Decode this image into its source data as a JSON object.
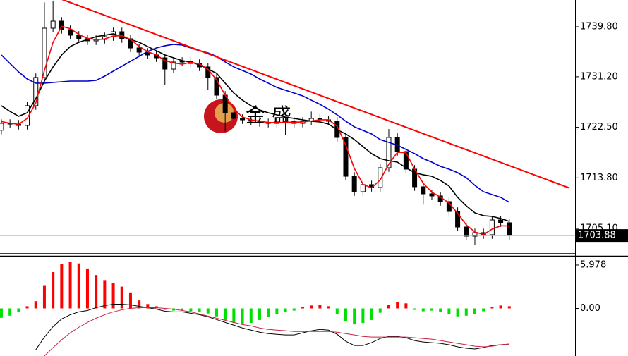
{
  "chart_data": [
    {
      "type": "candlestick",
      "watermark": "金 盛",
      "x": [
        0,
        1,
        2,
        3,
        4,
        5,
        6,
        7,
        8,
        9,
        10,
        11,
        12,
        13,
        14,
        15,
        16,
        17,
        18,
        19,
        20,
        21,
        22,
        23,
        24,
        25,
        26,
        27,
        28,
        29,
        30,
        31,
        32,
        33,
        34,
        35,
        36,
        37,
        38,
        39,
        40,
        41,
        42,
        43,
        44,
        45,
        46,
        47,
        48,
        49,
        50,
        51,
        52,
        53,
        54,
        55,
        56,
        57,
        58,
        59
      ],
      "open": [
        1722.0,
        1723.18,
        1723.06,
        1722.82,
        1726.22,
        1731.07,
        1739.56,
        1740.77,
        1739.32,
        1738.35,
        1737.74,
        1737.38,
        1737.62,
        1738.1,
        1738.95,
        1737.74,
        1736.16,
        1735.43,
        1734.95,
        1734.46,
        1732.52,
        1733.74,
        1733.86,
        1733.49,
        1732.89,
        1731.07,
        1728.03,
        1725.0,
        1724.03,
        1723.79,
        1723.55,
        1723.3,
        1723.18,
        1723.43,
        1723.55,
        1723.18,
        1723.55,
        1724.03,
        1723.79,
        1723.55,
        1720.76,
        1714.08,
        1711.42,
        1712.63,
        1712.14,
        1715.54,
        1720.76,
        1718.33,
        1715.3,
        1712.27,
        1711.05,
        1710.69,
        1709.72,
        1708.02,
        1705.35,
        1703.77,
        1704.38,
        1704.02,
        1706.56,
        1706.08
      ],
      "high": [
        1723.88,
        1723.88,
        1723.76,
        1726.92,
        1731.77,
        1744.0,
        1744.3,
        1741.47,
        1740.02,
        1739.05,
        1738.44,
        1738.32,
        1738.8,
        1739.65,
        1739.65,
        1738.44,
        1736.86,
        1736.13,
        1735.65,
        1735.16,
        1734.44,
        1734.56,
        1734.56,
        1734.19,
        1733.59,
        1731.77,
        1728.73,
        1725.7,
        1724.73,
        1724.49,
        1724.25,
        1724.0,
        1724.13,
        1724.25,
        1724.25,
        1724.25,
        1725.2,
        1724.73,
        1724.49,
        1724.25,
        1721.46,
        1714.78,
        1713.33,
        1713.33,
        1716.24,
        1722.2,
        1721.46,
        1719.03,
        1716.0,
        1712.97,
        1711.75,
        1711.39,
        1710.42,
        1708.72,
        1706.05,
        1705.08,
        1705.08,
        1707.26,
        1707.26,
        1706.78
      ],
      "low": [
        1721.3,
        1722.36,
        1722.12,
        1722.12,
        1725.52,
        1730.37,
        1738.86,
        1738.62,
        1737.65,
        1737.04,
        1736.68,
        1736.68,
        1736.92,
        1737.4,
        1737.04,
        1735.46,
        1734.73,
        1734.25,
        1733.76,
        1729.8,
        1731.82,
        1733.04,
        1732.79,
        1732.19,
        1729.0,
        1727.33,
        1721.8,
        1723.33,
        1723.09,
        1722.85,
        1722.6,
        1722.48,
        1722.48,
        1721.2,
        1722.48,
        1722.48,
        1722.85,
        1723.09,
        1722.85,
        1720.06,
        1713.38,
        1710.72,
        1710.72,
        1711.44,
        1711.44,
        1714.84,
        1717.63,
        1714.6,
        1711.57,
        1709.2,
        1709.99,
        1709.02,
        1707.32,
        1704.65,
        1703.07,
        1702.2,
        1703.32,
        1703.32,
        1705.38,
        1703.18
      ],
      "close": [
        1723.18,
        1723.06,
        1722.82,
        1726.22,
        1731.07,
        1739.56,
        1740.77,
        1739.32,
        1738.35,
        1737.74,
        1737.38,
        1737.62,
        1738.1,
        1738.95,
        1737.74,
        1736.16,
        1735.43,
        1734.95,
        1734.46,
        1732.52,
        1733.74,
        1733.86,
        1733.49,
        1732.89,
        1731.07,
        1728.03,
        1725.0,
        1724.03,
        1723.79,
        1723.55,
        1723.3,
        1723.18,
        1723.43,
        1723.55,
        1723.18,
        1723.55,
        1724.03,
        1723.79,
        1723.55,
        1720.76,
        1714.08,
        1711.42,
        1712.63,
        1712.14,
        1715.54,
        1720.76,
        1718.33,
        1715.3,
        1712.27,
        1711.05,
        1710.69,
        1709.72,
        1708.02,
        1705.35,
        1703.77,
        1704.38,
        1704.02,
        1706.56,
        1706.08,
        1703.88
      ],
      "series": [
        {
          "color": "#0000cc",
          "values": [
            1734.95,
            1733.49,
            1732.04,
            1730.82,
            1730.1,
            1730.1,
            1730.22,
            1730.34,
            1730.46,
            1730.46,
            1730.46,
            1730.58,
            1731.31,
            1732.16,
            1733.01,
            1733.86,
            1734.71,
            1735.56,
            1736.16,
            1736.53,
            1736.77,
            1736.65,
            1736.16,
            1735.68,
            1735.31,
            1734.71,
            1733.74,
            1732.89,
            1732.28,
            1731.67,
            1730.82,
            1730.1,
            1729.37,
            1728.88,
            1728.4,
            1727.91,
            1727.18,
            1726.46,
            1725.61,
            1724.64,
            1723.55,
            1722.58,
            1721.97,
            1721.36,
            1720.39,
            1719.91,
            1719.42,
            1718.7,
            1717.97,
            1717.12,
            1716.51,
            1715.78,
            1715.3,
            1714.69,
            1713.84,
            1712.51,
            1711.42,
            1710.93,
            1710.45,
            1709.6
          ]
        },
        {
          "color": "#000000",
          "values": [
            1726.22,
            1725.24,
            1724.4,
            1725.0,
            1727.43,
            1730.46,
            1732.89,
            1734.95,
            1736.4,
            1737.13,
            1737.62,
            1738.1,
            1738.35,
            1738.59,
            1738.1,
            1737.62,
            1737.13,
            1736.4,
            1735.68,
            1734.95,
            1734.46,
            1733.98,
            1733.74,
            1733.25,
            1732.52,
            1731.79,
            1730.1,
            1728.4,
            1727.18,
            1726.22,
            1725.49,
            1725.0,
            1724.64,
            1724.27,
            1724.03,
            1723.79,
            1723.55,
            1723.43,
            1723.06,
            1722.09,
            1721.36,
            1720.39,
            1719.18,
            1717.97,
            1717.12,
            1716.75,
            1716.51,
            1715.54,
            1714.69,
            1714.33,
            1714.08,
            1713.36,
            1712.39,
            1710.45,
            1708.99,
            1707.78,
            1707.3,
            1707.17,
            1706.81,
            1706.32
          ]
        },
        {
          "color": "#ff0000",
          "values": [
            1723.5,
            1723.2,
            1723.02,
            1724.03,
            1726.7,
            1732.28,
            1737.13,
            1739.88,
            1739.48,
            1738.47,
            1737.82,
            1737.58,
            1737.7,
            1738.22,
            1738.26,
            1737.62,
            1736.44,
            1735.51,
            1734.95,
            1733.98,
            1733.57,
            1733.37,
            1733.7,
            1733.41,
            1732.48,
            1730.66,
            1728.03,
            1725.69,
            1724.27,
            1723.79,
            1723.55,
            1723.34,
            1723.3,
            1723.39,
            1723.39,
            1723.43,
            1723.59,
            1723.79,
            1723.79,
            1722.7,
            1719.46,
            1715.42,
            1712.71,
            1712.06,
            1713.44,
            1716.15,
            1718.21,
            1718.13,
            1715.3,
            1712.87,
            1711.34,
            1710.49,
            1709.48,
            1707.7,
            1705.71,
            1704.5,
            1704.06,
            1704.99,
            1705.55,
            1705.51
          ]
        }
      ],
      "trendline": {
        "x": [
          7,
          66
        ],
        "values": [
          1744.53,
          1712.05
        ],
        "color": "#ff0000"
      },
      "last_price": 1703.88,
      "xlim": [
        -0.16,
        66.64
      ],
      "ylim": [
        1700.74,
        1744.41
      ],
      "yticks": [
        {
          "value": 1739.8,
          "label": "1739.80"
        },
        {
          "value": 1731.2,
          "label": "1731.20"
        },
        {
          "value": 1722.5,
          "label": "1722.50"
        },
        {
          "value": 1713.8,
          "label": "1713.80"
        },
        {
          "value": 1705.1,
          "label": "1705.10"
        }
      ]
    },
    {
      "type": "macd",
      "values": [
        -1.3,
        -1.0,
        -0.5,
        0.3,
        1.0,
        3.2,
        5.0,
        6.1,
        6.4,
        6.2,
        5.5,
        4.6,
        3.9,
        3.5,
        3.0,
        2.2,
        1.1,
        0.6,
        0.3,
        -0.2,
        -0.3,
        -0.3,
        -0.4,
        -0.5,
        -0.7,
        -1.1,
        -1.6,
        -2.0,
        -2.2,
        -2.0,
        -1.6,
        -1.2,
        -0.8,
        -0.5,
        -0.3,
        0.2,
        0.4,
        0.5,
        0.3,
        -0.8,
        -1.8,
        -2.2,
        -2.0,
        -1.6,
        -0.6,
        0.5,
        0.9,
        0.7,
        -0.2,
        -0.4,
        -0.3,
        -0.5,
        -0.8,
        -1.1,
        -1.0,
        -0.8,
        -0.4,
        0.2,
        0.4,
        0.3
      ],
      "colors": {
        "positive": "#ff0000",
        "negative": "#00e000"
      },
      "series": [
        {
          "color": "#000000",
          "values": [
            null,
            null,
            null,
            null,
            -5.69,
            -3.95,
            -2.51,
            -1.45,
            -0.87,
            -0.48,
            -0.29,
            0.1,
            0.39,
            0.58,
            0.58,
            0.48,
            0.29,
            0.1,
            -0.1,
            -0.39,
            -0.48,
            -0.48,
            -0.67,
            -0.87,
            -1.16,
            -1.54,
            -1.93,
            -2.31,
            -2.7,
            -2.99,
            -3.28,
            -3.47,
            -3.57,
            -3.66,
            -3.66,
            -3.37,
            -3.08,
            -2.89,
            -2.99,
            -3.57,
            -4.53,
            -5.11,
            -5.11,
            -4.72,
            -4.15,
            -3.86,
            -3.86,
            -4.05,
            -4.43,
            -4.63,
            -4.72,
            -4.82,
            -5.01,
            -5.3,
            -5.49,
            -5.59,
            -5.4,
            -5.11,
            -5.01,
            -4.92
          ]
        },
        {
          "color": "#cc2244",
          "values": [
            null,
            null,
            null,
            null,
            null,
            -6.56,
            -5.4,
            -4.34,
            -3.37,
            -2.6,
            -1.93,
            -1.35,
            -0.87,
            -0.48,
            -0.19,
            0.0,
            0.1,
            0.1,
            0.1,
            0.0,
            -0.1,
            -0.29,
            -0.48,
            -0.77,
            -1.06,
            -1.35,
            -1.64,
            -1.93,
            -2.22,
            -2.41,
            -2.7,
            -2.89,
            -2.99,
            -3.08,
            -3.18,
            -3.18,
            -3.18,
            -3.18,
            -3.18,
            -3.28,
            -3.47,
            -3.66,
            -3.86,
            -3.95,
            -3.95,
            -3.95,
            -3.95,
            -3.95,
            -4.05,
            -4.15,
            -4.24,
            -4.43,
            -4.63,
            -4.82,
            -5.01,
            -5.21,
            -5.3,
            -5.21,
            -5.01,
            -4.92
          ]
        }
      ],
      "ylim": [
        -6.56,
        7.14
      ],
      "yticks": [
        5.978,
        {
          "value": 0,
          "label": "0.00"
        }
      ]
    }
  ]
}
